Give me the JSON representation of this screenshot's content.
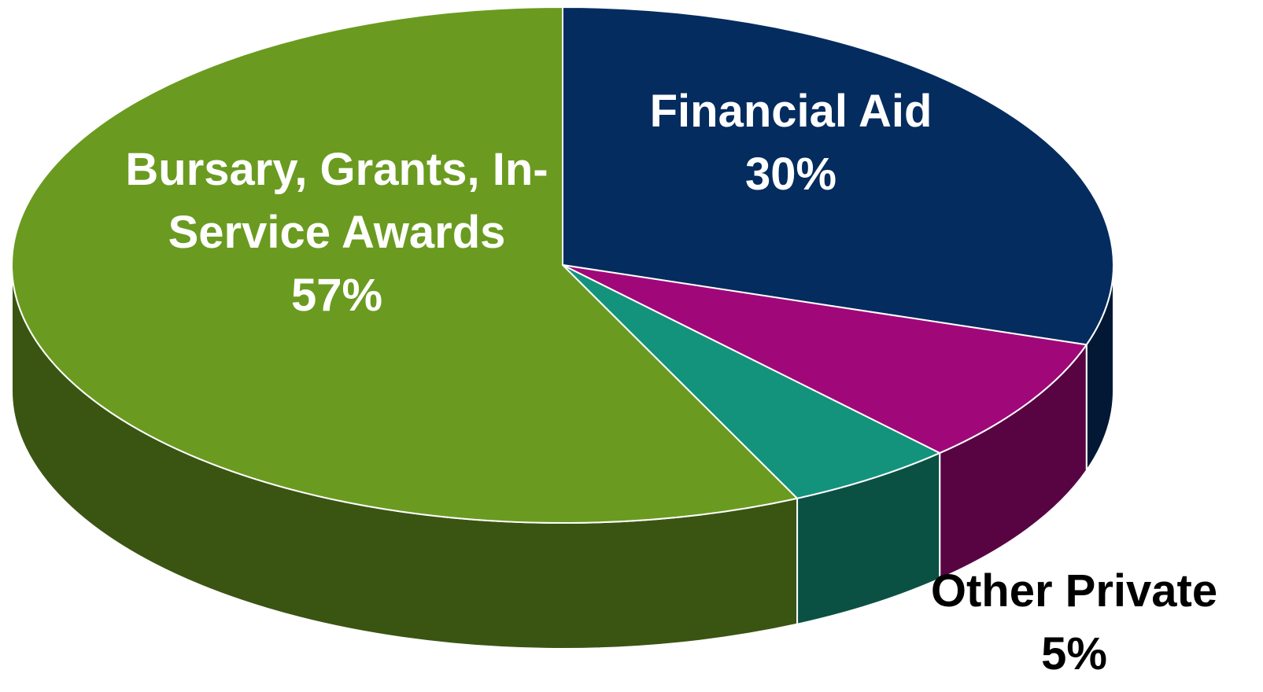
{
  "chart_data": {
    "type": "pie",
    "categories": [
      "Financial Aid",
      null,
      "Other Private",
      "Bursary, Grants, In-Service Awards"
    ],
    "values": [
      30,
      8,
      5,
      57
    ],
    "value_labels": [
      "30%",
      null,
      "5%",
      "57%"
    ],
    "colors": [
      "#052c5e",
      "#a0087a",
      "#13937c",
      "#6a9b20"
    ]
  }
}
